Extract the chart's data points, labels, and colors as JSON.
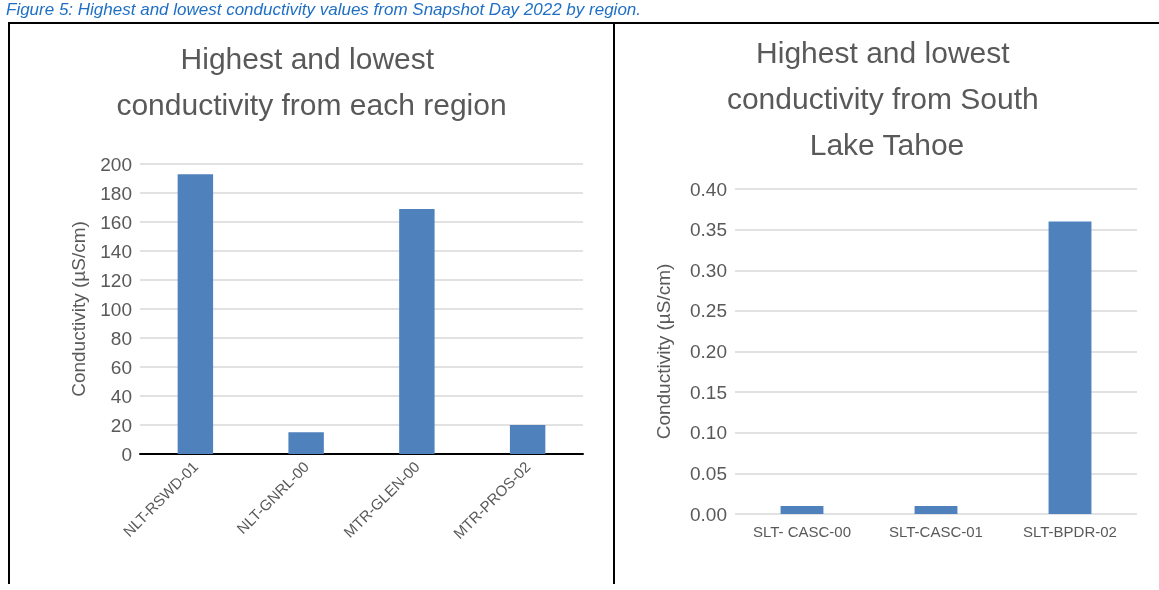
{
  "chart_data": [
    {
      "type": "bar",
      "title": "Highest and lowest conductivity from each region",
      "ylabel": "Conductivity (µS/cm)",
      "categories": [
        "NLT-RSWD-01",
        "NLT-GNRL-00",
        "MTR-GLEN-00",
        "MTR-PROS-02"
      ],
      "values": [
        193,
        15,
        169,
        20
      ],
      "color": "#4f81bd",
      "ylim": [
        0,
        200
      ],
      "yticks": [
        0,
        20,
        40,
        60,
        80,
        100,
        120,
        140,
        160,
        180,
        200
      ],
      "grid": "y",
      "annotations": [
        "Figure 5: Highest and lowest conductivity values from Snapshot Day 2022 by region."
      ]
    },
    {
      "type": "bar",
      "title": "Highest and lowest conductivity from South Lake Tahoe",
      "ylabel": "Conductivity (µS/cm)",
      "categories": [
        "SLT- CASC-00",
        "SLT-CASC-01",
        "SLT-BPDR-02"
      ],
      "values": [
        0.01,
        0.01,
        0.36
      ],
      "color": "#4f81bd",
      "ylim": [
        0,
        0.4
      ],
      "yticks": [
        {
          "value": 0,
          "label": "0.00"
        },
        {
          "value": 0.05,
          "label": "0.05"
        },
        {
          "value": 0.1,
          "label": "0.10"
        },
        {
          "value": 0.15,
          "label": "0.15"
        },
        {
          "value": 0.2,
          "label": "0.20"
        },
        {
          "value": 0.25,
          "label": "0.25"
        },
        {
          "value": 0.3,
          "label": "0.30"
        },
        {
          "value": 0.35,
          "label": "0.35"
        },
        {
          "value": 0.4,
          "label": "0.40"
        }
      ],
      "grid": "y"
    }
  ]
}
